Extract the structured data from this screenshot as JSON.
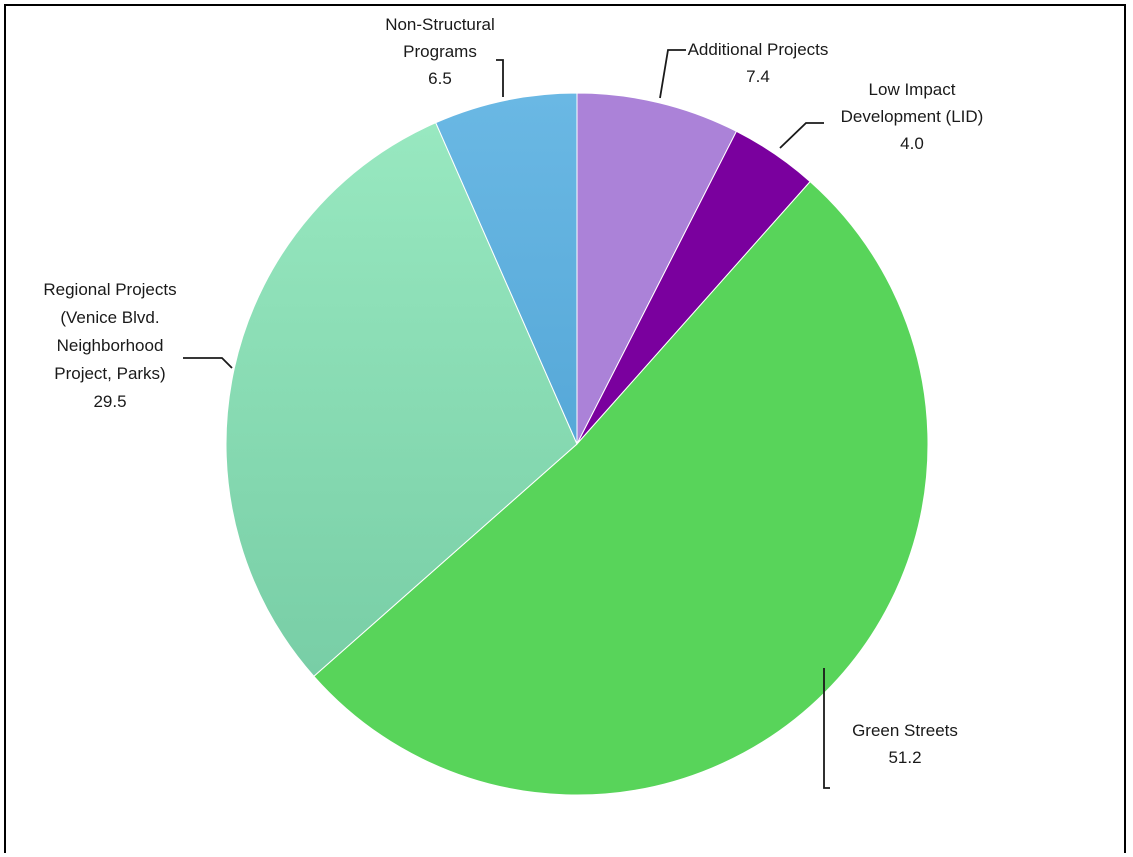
{
  "chart_data": {
    "type": "pie",
    "title": "",
    "colors": {
      "additional": "#ab82d8",
      "lid": "#7a009e",
      "green": "#58d45a",
      "regional_top": "#98e8c0",
      "regional_bottom": "#78cea6",
      "nonstructural_top": "#6ab8e4",
      "nonstructural_bottom": "#56a8d8"
    },
    "slices": [
      {
        "key": "additional",
        "label_lines": [
          "Additional Projects"
        ],
        "value": 7.4,
        "value_text": "7.4"
      },
      {
        "key": "lid",
        "label_lines": [
          "Low Impact",
          "Development (LID)"
        ],
        "value": 4.0,
        "value_text": "4.0"
      },
      {
        "key": "green",
        "label_lines": [
          "Green Streets"
        ],
        "value": 51.2,
        "value_text": "51.2"
      },
      {
        "key": "regional",
        "label_lines": [
          "Regional Projects",
          "(Venice Blvd.",
          "Neighborhood",
          "Project, Parks)"
        ],
        "value": 29.5,
        "value_text": "29.5"
      },
      {
        "key": "nonstructural",
        "label_lines": [
          "Non-Structural",
          "Programs"
        ],
        "value": 6.5,
        "value_text": "6.5"
      }
    ]
  }
}
